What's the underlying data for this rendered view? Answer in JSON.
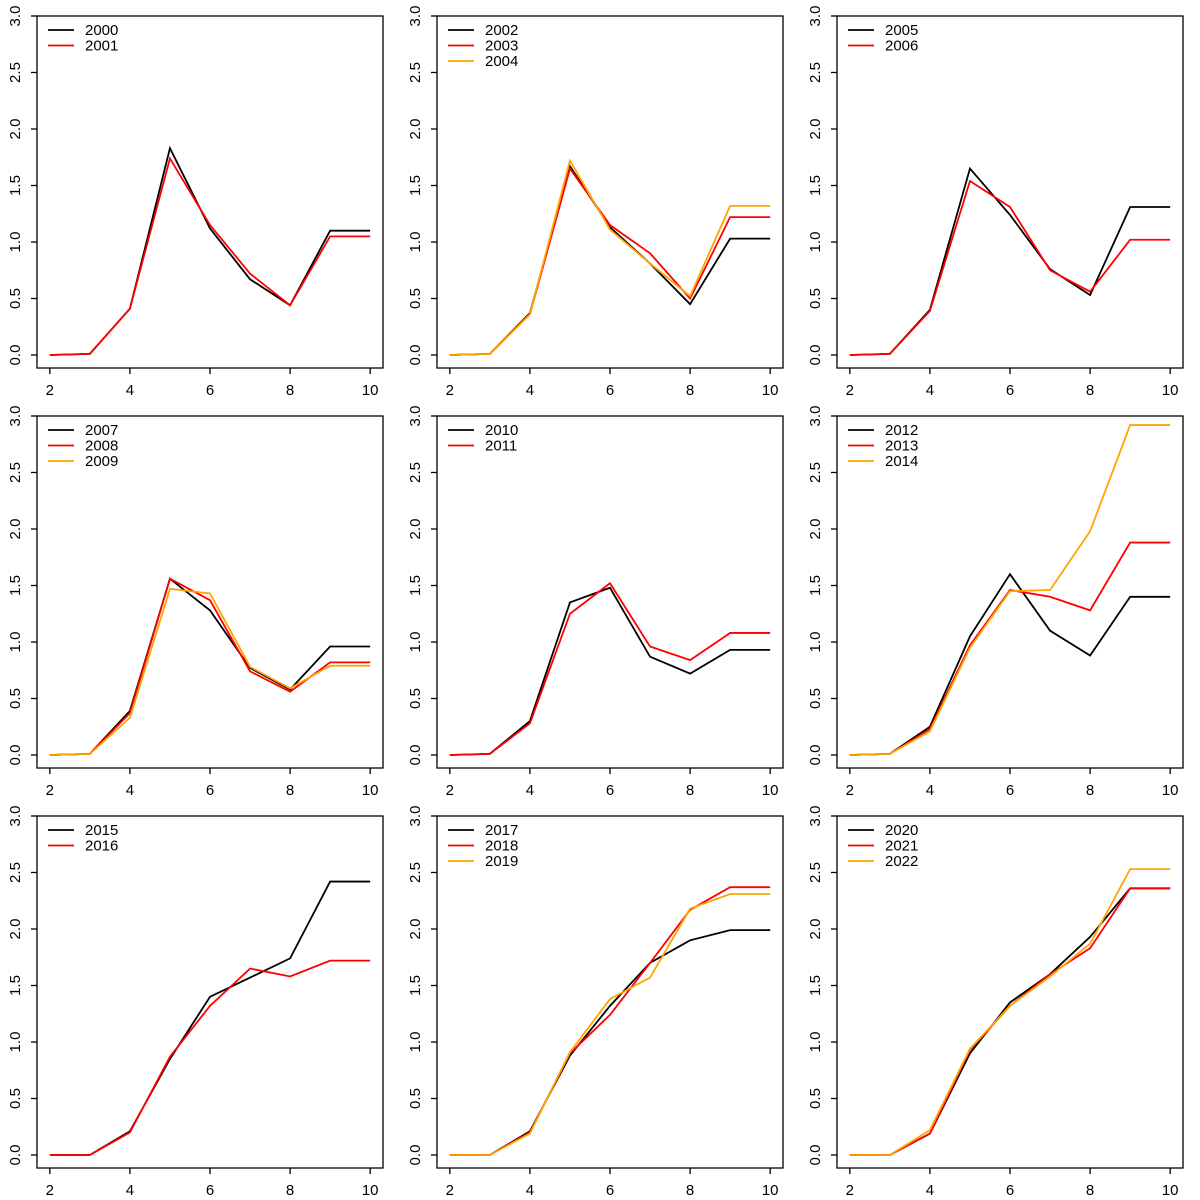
{
  "page": {
    "background": "#ffffff"
  },
  "palette": {
    "black": "#000000",
    "red": "#ff0000",
    "orange": "#ffa500"
  },
  "axes_defaults": {
    "xlim": [
      2,
      10
    ],
    "ylim": [
      0,
      3
    ],
    "xticks": [
      "2",
      "4",
      "6",
      "8",
      "10"
    ],
    "xtick_values": [
      2,
      4,
      6,
      8,
      10
    ],
    "yticks": [
      "0.0",
      "0.5",
      "1.0",
      "1.5",
      "2.0",
      "2.5",
      "3.0"
    ],
    "ytick_values": [
      0,
      0.5,
      1,
      1.5,
      2,
      2.5,
      3
    ],
    "grid": false,
    "legend_position": "topleft"
  },
  "chart_data": [
    {
      "type": "line",
      "x": [
        2,
        3,
        4,
        5,
        6,
        7,
        8,
        9,
        10
      ],
      "series": [
        {
          "name": "2000",
          "color": "#000000",
          "values": [
            0.0,
            0.01,
            0.41,
            1.83,
            1.12,
            0.67,
            0.44,
            1.1,
            1.1
          ]
        },
        {
          "name": "2001",
          "color": "#ff0000",
          "values": [
            0.0,
            0.01,
            0.41,
            1.74,
            1.15,
            0.72,
            0.44,
            1.05,
            1.05
          ]
        }
      ]
    },
    {
      "type": "line",
      "x": [
        2,
        3,
        4,
        5,
        6,
        7,
        8,
        9,
        10
      ],
      "series": [
        {
          "name": "2002",
          "color": "#000000",
          "values": [
            0.0,
            0.01,
            0.37,
            1.67,
            1.13,
            0.81,
            0.45,
            1.03,
            1.03
          ]
        },
        {
          "name": "2003",
          "color": "#ff0000",
          "values": [
            0.0,
            0.01,
            0.36,
            1.65,
            1.15,
            0.9,
            0.5,
            1.22,
            1.22
          ]
        },
        {
          "name": "2004",
          "color": "#ffa500",
          "values": [
            0.0,
            0.01,
            0.36,
            1.72,
            1.11,
            0.81,
            0.52,
            1.32,
            1.32
          ]
        }
      ]
    },
    {
      "type": "line",
      "x": [
        2,
        3,
        4,
        5,
        6,
        7,
        8,
        9,
        10
      ],
      "series": [
        {
          "name": "2005",
          "color": "#000000",
          "values": [
            0.0,
            0.01,
            0.4,
            1.65,
            1.24,
            0.76,
            0.53,
            1.31,
            1.31
          ]
        },
        {
          "name": "2006",
          "color": "#ff0000",
          "values": [
            0.0,
            0.01,
            0.39,
            1.54,
            1.31,
            0.75,
            0.56,
            1.02,
            1.02
          ]
        }
      ]
    },
    {
      "type": "line",
      "x": [
        2,
        3,
        4,
        5,
        6,
        7,
        8,
        9,
        10
      ],
      "series": [
        {
          "name": "2007",
          "color": "#000000",
          "values": [
            0.0,
            0.01,
            0.39,
            1.56,
            1.28,
            0.77,
            0.58,
            0.96,
            0.96
          ]
        },
        {
          "name": "2008",
          "color": "#ff0000",
          "values": [
            0.0,
            0.01,
            0.37,
            1.56,
            1.37,
            0.74,
            0.56,
            0.82,
            0.82
          ]
        },
        {
          "name": "2009",
          "color": "#ffa500",
          "values": [
            0.0,
            0.01,
            0.33,
            1.47,
            1.43,
            0.78,
            0.59,
            0.79,
            0.79
          ]
        }
      ]
    },
    {
      "type": "line",
      "x": [
        2,
        3,
        4,
        5,
        6,
        7,
        8,
        9,
        10
      ],
      "series": [
        {
          "name": "2010",
          "color": "#000000",
          "values": [
            0.0,
            0.01,
            0.3,
            1.35,
            1.48,
            0.87,
            0.72,
            0.93,
            0.93
          ]
        },
        {
          "name": "2011",
          "color": "#ff0000",
          "values": [
            0.0,
            0.01,
            0.28,
            1.25,
            1.52,
            0.96,
            0.84,
            1.08,
            1.08
          ]
        }
      ]
    },
    {
      "type": "line",
      "x": [
        2,
        3,
        4,
        5,
        6,
        7,
        8,
        9,
        10
      ],
      "series": [
        {
          "name": "2012",
          "color": "#000000",
          "values": [
            0.0,
            0.01,
            0.25,
            1.05,
            1.6,
            1.1,
            0.88,
            1.4,
            1.4
          ]
        },
        {
          "name": "2013",
          "color": "#ff0000",
          "values": [
            0.0,
            0.01,
            0.23,
            0.97,
            1.46,
            1.4,
            1.28,
            1.88,
            1.88
          ]
        },
        {
          "name": "2014",
          "color": "#ffa500",
          "values": [
            0.0,
            0.01,
            0.21,
            0.95,
            1.45,
            1.46,
            1.98,
            2.92,
            2.92
          ]
        }
      ]
    },
    {
      "type": "line",
      "x": [
        2,
        3,
        4,
        5,
        6,
        7,
        8,
        9,
        10
      ],
      "series": [
        {
          "name": "2015",
          "color": "#000000",
          "values": [
            0.0,
            0.0,
            0.21,
            0.85,
            1.4,
            1.57,
            1.74,
            2.42,
            2.42
          ]
        },
        {
          "name": "2016",
          "color": "#ff0000",
          "values": [
            0.0,
            0.0,
            0.2,
            0.87,
            1.32,
            1.65,
            1.58,
            1.72,
            1.72
          ]
        }
      ]
    },
    {
      "type": "line",
      "x": [
        2,
        3,
        4,
        5,
        6,
        7,
        8,
        9,
        10
      ],
      "series": [
        {
          "name": "2017",
          "color": "#000000",
          "values": [
            0.0,
            0.0,
            0.21,
            0.88,
            1.32,
            1.7,
            1.9,
            1.99,
            1.99
          ]
        },
        {
          "name": "2018",
          "color": "#ff0000",
          "values": [
            0.0,
            0.0,
            0.2,
            0.9,
            1.24,
            1.7,
            2.17,
            2.37,
            2.37
          ]
        },
        {
          "name": "2019",
          "color": "#ffa500",
          "values": [
            0.0,
            0.0,
            0.19,
            0.91,
            1.38,
            1.57,
            2.18,
            2.31,
            2.31
          ]
        }
      ]
    },
    {
      "type": "line",
      "x": [
        2,
        3,
        4,
        5,
        6,
        7,
        8,
        9,
        10
      ],
      "series": [
        {
          "name": "2020",
          "color": "#000000",
          "values": [
            0.0,
            0.0,
            0.19,
            0.9,
            1.35,
            1.6,
            1.93,
            2.36,
            2.36
          ]
        },
        {
          "name": "2021",
          "color": "#ff0000",
          "values": [
            0.0,
            0.0,
            0.19,
            0.93,
            1.32,
            1.6,
            1.83,
            2.36,
            2.36
          ]
        },
        {
          "name": "2022",
          "color": "#ffa500",
          "values": [
            0.0,
            0.0,
            0.22,
            0.94,
            1.32,
            1.58,
            1.87,
            2.53,
            2.53
          ]
        }
      ]
    }
  ]
}
